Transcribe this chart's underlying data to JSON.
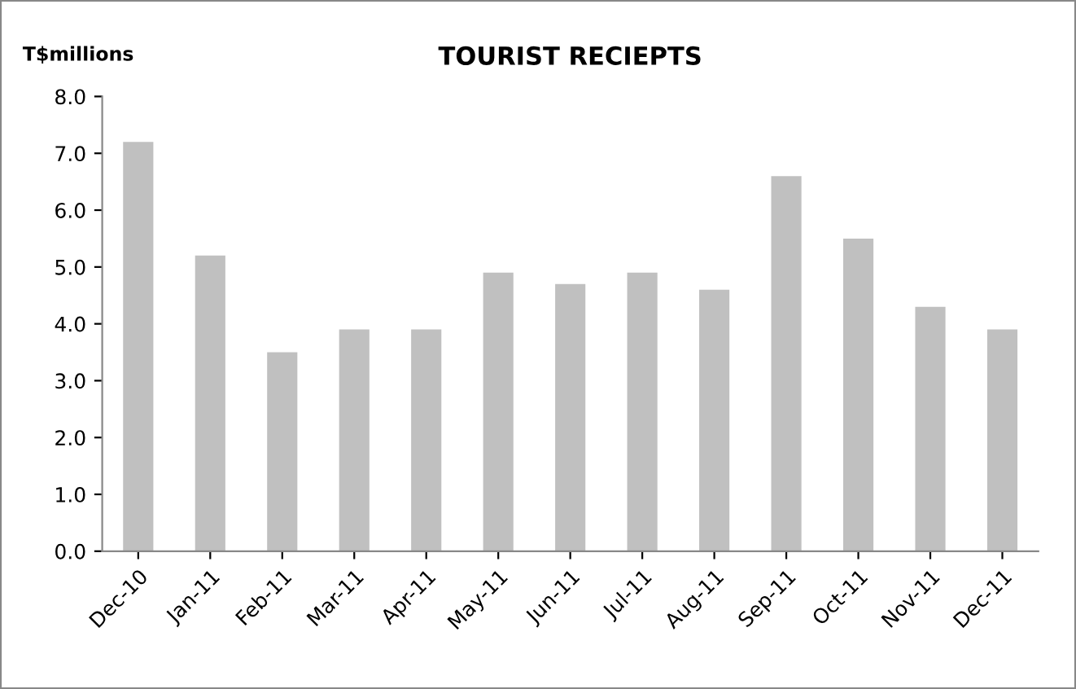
{
  "chart_data": {
    "type": "bar",
    "title": "TOURIST RECIEPTS",
    "ylabel": "T$millions",
    "categories": [
      "Dec-10",
      "Jan-11",
      "Feb-11",
      "Mar-11",
      "Apr-11",
      "May-11",
      "Jun-11",
      "Jul-11",
      "Aug-11",
      "Sep-11",
      "Oct-11",
      "Nov-11",
      "Dec-11"
    ],
    "values": [
      7.2,
      5.2,
      3.5,
      3.9,
      3.9,
      4.9,
      4.7,
      4.9,
      4.6,
      6.6,
      5.5,
      4.3,
      3.9
    ],
    "color": "#c0c0c0",
    "ylim": [
      0,
      8
    ],
    "yticks": [
      {
        "value": 0,
        "label": "0.0"
      },
      {
        "value": 1,
        "label": "1.0"
      },
      {
        "value": 2,
        "label": "2.0"
      },
      {
        "value": 3,
        "label": "3.0"
      },
      {
        "value": 4,
        "label": "4.0"
      },
      {
        "value": 5,
        "label": "5.0"
      },
      {
        "value": 6,
        "label": "6.0"
      },
      {
        "value": 7,
        "label": "7.0"
      },
      {
        "value": 8,
        "label": "8.0"
      }
    ],
    "grid": false,
    "legend": false
  }
}
